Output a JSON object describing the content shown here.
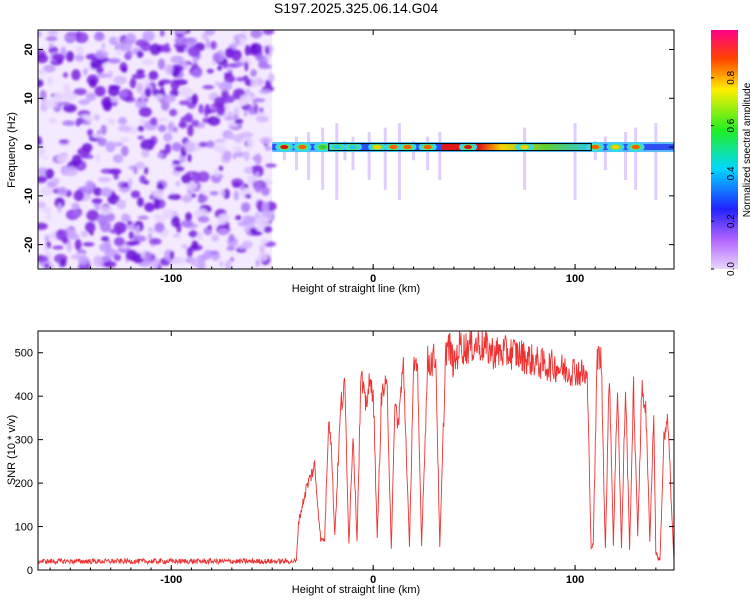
{
  "title": "S197.2025.325.06.14.G04",
  "colors": {
    "snr_line": "#ee3333",
    "noise": "#8a2be2",
    "axes": "#000000"
  },
  "chart_data": [
    {
      "type": "heatmap",
      "xlabel": "Height of straight line (km)",
      "ylabel": "Frequency (Hz)",
      "xlim": [
        -166,
        149
      ],
      "ylim": [
        -25,
        24
      ],
      "x_ticks": [
        "-100",
        "0",
        "100"
      ],
      "y_ticks": [
        "-20",
        "-10",
        "0",
        "10",
        "20"
      ],
      "colormap": "rainbow (purple → red)",
      "colorbar": {
        "label": "Normalized spectral amplitude",
        "range": [
          0,
          1
        ],
        "ticks": [
          "0.0",
          "0.2",
          "0.4",
          "0.6",
          "0.8"
        ]
      },
      "noise_region_x": [
        -166,
        -50
      ],
      "signal_band_hz": [
        -1.5,
        1.5
      ],
      "peaks": [
        {
          "x": -44,
          "amp": 0.95
        },
        {
          "x": -35,
          "amp": 0.85
        },
        {
          "x": -25,
          "amp": 0.6
        },
        {
          "x": -18,
          "amp": 0.5
        },
        {
          "x": -10,
          "amp": 0.55
        },
        {
          "x": 2,
          "amp": 0.8
        },
        {
          "x": 10,
          "amp": 0.85
        },
        {
          "x": 17,
          "amp": 0.85
        },
        {
          "x": 27,
          "amp": 0.9
        },
        {
          "x": 47,
          "amp": 1.0
        },
        {
          "x": 75,
          "amp": 0.75
        },
        {
          "x": 110,
          "amp": 0.85
        },
        {
          "x": 120,
          "amp": 0.8
        },
        {
          "x": 130,
          "amp": 0.9
        }
      ],
      "continuous_band_x": [
        34,
        108
      ]
    },
    {
      "type": "line",
      "xlabel": "Height of straight line (km)",
      "ylabel": "SNR (10 * v/v)",
      "xlim": [
        -166,
        149
      ],
      "ylim": [
        0,
        550
      ],
      "x_ticks": [
        "-100",
        "0",
        "100"
      ],
      "y_ticks": [
        "0",
        "100",
        "200",
        "300",
        "400",
        "500"
      ],
      "series": [
        {
          "x": [
            -166,
            -150,
            -130,
            -110,
            -90,
            -70,
            -50,
            -40,
            -38,
            -37,
            -33,
            -29,
            -26,
            -24,
            -22,
            -21,
            -19,
            -16,
            -14,
            -12,
            -10,
            -8,
            -6,
            -5,
            -4,
            -2,
            0,
            2,
            4,
            5,
            7,
            9,
            11,
            12,
            15,
            18,
            20,
            22,
            24,
            27,
            29,
            31,
            33,
            36,
            38,
            40,
            43,
            45,
            48,
            52,
            56,
            60,
            65,
            70,
            75,
            80,
            85,
            90,
            95,
            100,
            104,
            106,
            108,
            109,
            111,
            113,
            115,
            117,
            119,
            121,
            123,
            125,
            127,
            129,
            131,
            133,
            135,
            137,
            139,
            140,
            142,
            144,
            146,
            148,
            149
          ],
          "y": [
            20,
            20,
            20,
            20,
            20,
            20,
            20,
            20,
            20,
            110,
            190,
            240,
            70,
            70,
            360,
            310,
            80,
            380,
            420,
            60,
            320,
            70,
            450,
            410,
            380,
            420,
            420,
            70,
            380,
            420,
            410,
            50,
            410,
            320,
            470,
            50,
            480,
            440,
            60,
            480,
            480,
            490,
            50,
            510,
            510,
            470,
            520,
            510,
            515,
            520,
            510,
            500,
            500,
            500,
            490,
            480,
            470,
            470,
            460,
            460,
            450,
            440,
            50,
            60,
            500,
            480,
            50,
            460,
            60,
            430,
            50,
            420,
            50,
            420,
            80,
            410,
            380,
            70,
            360,
            40,
            20,
            300,
            340,
            120,
            20
          ]
        }
      ]
    }
  ]
}
